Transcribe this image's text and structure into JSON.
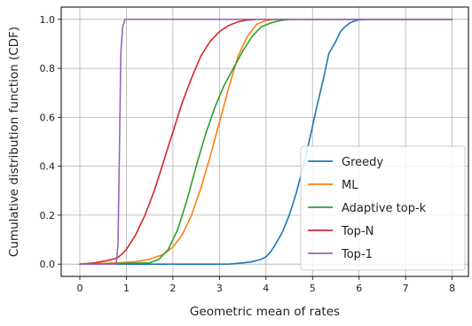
{
  "chart_data": {
    "type": "line",
    "title": "",
    "xlabel": "Geometric mean of rates",
    "ylabel": "Cumulative distribution function (CDF)",
    "xlim": [
      -0.4,
      8.35
    ],
    "ylim": [
      -0.05,
      1.05
    ],
    "xticks": [
      0,
      1,
      2,
      3,
      4,
      5,
      6,
      7,
      8
    ],
    "yticks": [
      0.0,
      0.2,
      0.4,
      0.6,
      0.8,
      1.0
    ],
    "xtick_labels": [
      "0",
      "1",
      "2",
      "3",
      "4",
      "5",
      "6",
      "7",
      "8"
    ],
    "ytick_labels": [
      "0.0",
      "0.2",
      "0.4",
      "0.6",
      "0.8",
      "1.0"
    ],
    "grid": true,
    "legend_position": "bottom-right",
    "series": [
      {
        "name": "Greedy",
        "color": "#1f77b4",
        "x": [
          0,
          3.2,
          3.5,
          3.7,
          3.9,
          4.0,
          4.1,
          4.2,
          4.35,
          4.5,
          4.65,
          4.8,
          4.95,
          5.1,
          5.25,
          5.35,
          5.5,
          5.6,
          5.7,
          5.8,
          5.9,
          6.0,
          6.2,
          8.0
        ],
        "y": [
          0.0,
          0.0,
          0.005,
          0.01,
          0.02,
          0.03,
          0.05,
          0.08,
          0.13,
          0.2,
          0.29,
          0.4,
          0.52,
          0.65,
          0.77,
          0.86,
          0.91,
          0.95,
          0.97,
          0.985,
          0.993,
          0.998,
          1.0,
          1.0
        ]
      },
      {
        "name": "ML",
        "color": "#ff7f0e",
        "x": [
          0,
          0.8,
          1.2,
          1.5,
          1.8,
          2.0,
          2.2,
          2.4,
          2.6,
          2.8,
          3.0,
          3.2,
          3.4,
          3.6,
          3.8,
          4.0,
          4.2,
          4.4,
          8.0
        ],
        "y": [
          0.0,
          0.005,
          0.01,
          0.02,
          0.04,
          0.07,
          0.12,
          0.2,
          0.31,
          0.44,
          0.58,
          0.72,
          0.85,
          0.93,
          0.98,
          0.995,
          1.0,
          1.0,
          1.0
        ]
      },
      {
        "name": "Adaptive top-k",
        "color": "#2ca02c",
        "x": [
          0,
          1.5,
          1.7,
          1.9,
          2.1,
          2.3,
          2.5,
          2.7,
          2.9,
          3.1,
          3.3,
          3.5,
          3.7,
          3.9,
          4.1,
          4.3,
          4.5,
          4.7,
          8.0
        ],
        "y": [
          0.0,
          0.005,
          0.02,
          0.06,
          0.14,
          0.26,
          0.4,
          0.53,
          0.64,
          0.73,
          0.8,
          0.87,
          0.93,
          0.97,
          0.985,
          0.995,
          1.0,
          1.0,
          1.0
        ]
      },
      {
        "name": "Top-N",
        "color": "#d62728",
        "x": [
          0,
          0.3,
          0.6,
          0.8,
          0.9,
          1.0,
          1.2,
          1.4,
          1.6,
          1.8,
          2.0,
          2.2,
          2.4,
          2.6,
          2.8,
          3.0,
          3.2,
          3.4,
          3.6,
          3.8,
          8.0
        ],
        "y": [
          0.0,
          0.005,
          0.015,
          0.025,
          0.04,
          0.06,
          0.12,
          0.2,
          0.3,
          0.42,
          0.54,
          0.66,
          0.76,
          0.85,
          0.91,
          0.95,
          0.975,
          0.99,
          0.997,
          1.0,
          1.0
        ]
      },
      {
        "name": "Top-1",
        "color": "#9467bd",
        "x": [
          0,
          0.78,
          0.82,
          0.85,
          0.88,
          0.92,
          0.97,
          1.0,
          8.0
        ],
        "y": [
          0.0,
          0.0,
          0.08,
          0.45,
          0.86,
          0.97,
          1.0,
          1.0,
          1.0
        ]
      }
    ]
  }
}
